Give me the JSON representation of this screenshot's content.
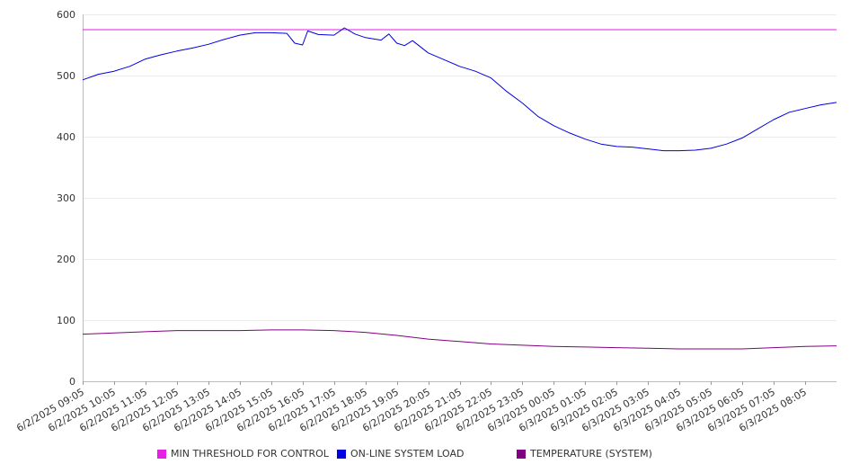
{
  "chart_data": {
    "type": "line",
    "title": "",
    "xlabel": "",
    "ylabel": "",
    "ylim": [
      0,
      600
    ],
    "yticks": [
      0,
      100,
      200,
      300,
      400,
      500,
      600
    ],
    "grid": "horizontal",
    "legend_position": "bottom",
    "x_start": "6/2/2025 09:05",
    "x_end": "6/3/2025 09:05",
    "x_tick_labels": [
      "6/2/2025 09:05",
      "6/2/2025 10:05",
      "6/2/2025 11:05",
      "6/2/2025 12:05",
      "6/2/2025 13:05",
      "6/2/2025 14:05",
      "6/2/2025 15:05",
      "6/2/2025 16:05",
      "6/2/2025 17:05",
      "6/2/2025 18:05",
      "6/2/2025 19:05",
      "6/2/2025 20:05",
      "6/2/2025 21:05",
      "6/2/2025 22:05",
      "6/2/2025 23:05",
      "6/3/2025 00:05",
      "6/3/2025 01:05",
      "6/3/2025 02:05",
      "6/3/2025 03:05",
      "6/3/2025 04:05",
      "6/3/2025 05:05",
      "6/3/2025 06:05",
      "6/3/2025 07:05",
      "6/3/2025 08:05"
    ],
    "series": [
      {
        "name": "MIN THRESHOLD FOR CONTROL",
        "color": "#e61ee6",
        "points": [
          [
            "6/2/2025 09:05",
            575
          ],
          [
            "6/3/2025 09:05",
            575
          ]
        ]
      },
      {
        "name": "ON-LINE SYSTEM LOAD",
        "color": "#0000e0",
        "points": [
          [
            "6/2/2025 09:05",
            493
          ],
          [
            "6/2/2025 09:35",
            502
          ],
          [
            "6/2/2025 10:05",
            507
          ],
          [
            "6/2/2025 10:35",
            515
          ],
          [
            "6/2/2025 11:05",
            527
          ],
          [
            "6/2/2025 11:35",
            534
          ],
          [
            "6/2/2025 12:05",
            540
          ],
          [
            "6/2/2025 12:35",
            545
          ],
          [
            "6/2/2025 13:05",
            551
          ],
          [
            "6/2/2025 13:35",
            559
          ],
          [
            "6/2/2025 14:05",
            566
          ],
          [
            "6/2/2025 14:35",
            570
          ],
          [
            "6/2/2025 15:05",
            570
          ],
          [
            "6/2/2025 15:35",
            569
          ],
          [
            "6/2/2025 15:50",
            553
          ],
          [
            "6/2/2025 16:05",
            550
          ],
          [
            "6/2/2025 16:15",
            573
          ],
          [
            "6/2/2025 16:35",
            567
          ],
          [
            "6/2/2025 17:05",
            566
          ],
          [
            "6/2/2025 17:25",
            578
          ],
          [
            "6/2/2025 17:45",
            568
          ],
          [
            "6/2/2025 18:05",
            562
          ],
          [
            "6/2/2025 18:35",
            558
          ],
          [
            "6/2/2025 18:50",
            568
          ],
          [
            "6/2/2025 19:05",
            553
          ],
          [
            "6/2/2025 19:20",
            549
          ],
          [
            "6/2/2025 19:35",
            557
          ],
          [
            "6/2/2025 20:05",
            537
          ],
          [
            "6/2/2025 20:35",
            526
          ],
          [
            "6/2/2025 21:05",
            515
          ],
          [
            "6/2/2025 21:35",
            507
          ],
          [
            "6/2/2025 22:05",
            496
          ],
          [
            "6/2/2025 22:35",
            474
          ],
          [
            "6/2/2025 23:05",
            455
          ],
          [
            "6/2/2025 23:35",
            433
          ],
          [
            "6/3/2025 00:05",
            418
          ],
          [
            "6/3/2025 00:35",
            406
          ],
          [
            "6/3/2025 01:05",
            396
          ],
          [
            "6/3/2025 01:35",
            388
          ],
          [
            "6/3/2025 02:05",
            384
          ],
          [
            "6/3/2025 02:35",
            383
          ],
          [
            "6/3/2025 03:05",
            380
          ],
          [
            "6/3/2025 03:35",
            377
          ],
          [
            "6/3/2025 04:05",
            377
          ],
          [
            "6/3/2025 04:35",
            378
          ],
          [
            "6/3/2025 05:05",
            381
          ],
          [
            "6/3/2025 05:35",
            388
          ],
          [
            "6/3/2025 06:05",
            398
          ],
          [
            "6/3/2025 06:35",
            413
          ],
          [
            "6/3/2025 07:05",
            428
          ],
          [
            "6/3/2025 07:35",
            440
          ],
          [
            "6/3/2025 08:05",
            446
          ],
          [
            "6/3/2025 08:35",
            452
          ],
          [
            "6/3/2025 09:05",
            456
          ]
        ]
      },
      {
        "name": "TEMPERATURE (SYSTEM)",
        "color": "#800080",
        "points": [
          [
            "6/2/2025 09:05",
            77
          ],
          [
            "6/2/2025 10:05",
            79
          ],
          [
            "6/2/2025 11:05",
            81
          ],
          [
            "6/2/2025 12:05",
            83
          ],
          [
            "6/2/2025 13:05",
            83
          ],
          [
            "6/2/2025 14:05",
            83
          ],
          [
            "6/2/2025 15:05",
            84
          ],
          [
            "6/2/2025 16:05",
            84
          ],
          [
            "6/2/2025 17:05",
            83
          ],
          [
            "6/2/2025 18:05",
            80
          ],
          [
            "6/2/2025 19:05",
            75
          ],
          [
            "6/2/2025 20:05",
            69
          ],
          [
            "6/2/2025 21:05",
            65
          ],
          [
            "6/2/2025 22:05",
            61
          ],
          [
            "6/2/2025 23:05",
            59
          ],
          [
            "6/3/2025 00:05",
            57
          ],
          [
            "6/3/2025 01:05",
            56
          ],
          [
            "6/3/2025 02:05",
            55
          ],
          [
            "6/3/2025 03:05",
            54
          ],
          [
            "6/3/2025 04:05",
            53
          ],
          [
            "6/3/2025 05:05",
            53
          ],
          [
            "6/3/2025 06:05",
            53
          ],
          [
            "6/3/2025 07:05",
            55
          ],
          [
            "6/3/2025 08:05",
            57
          ],
          [
            "6/3/2025 09:05",
            58
          ]
        ]
      }
    ]
  }
}
